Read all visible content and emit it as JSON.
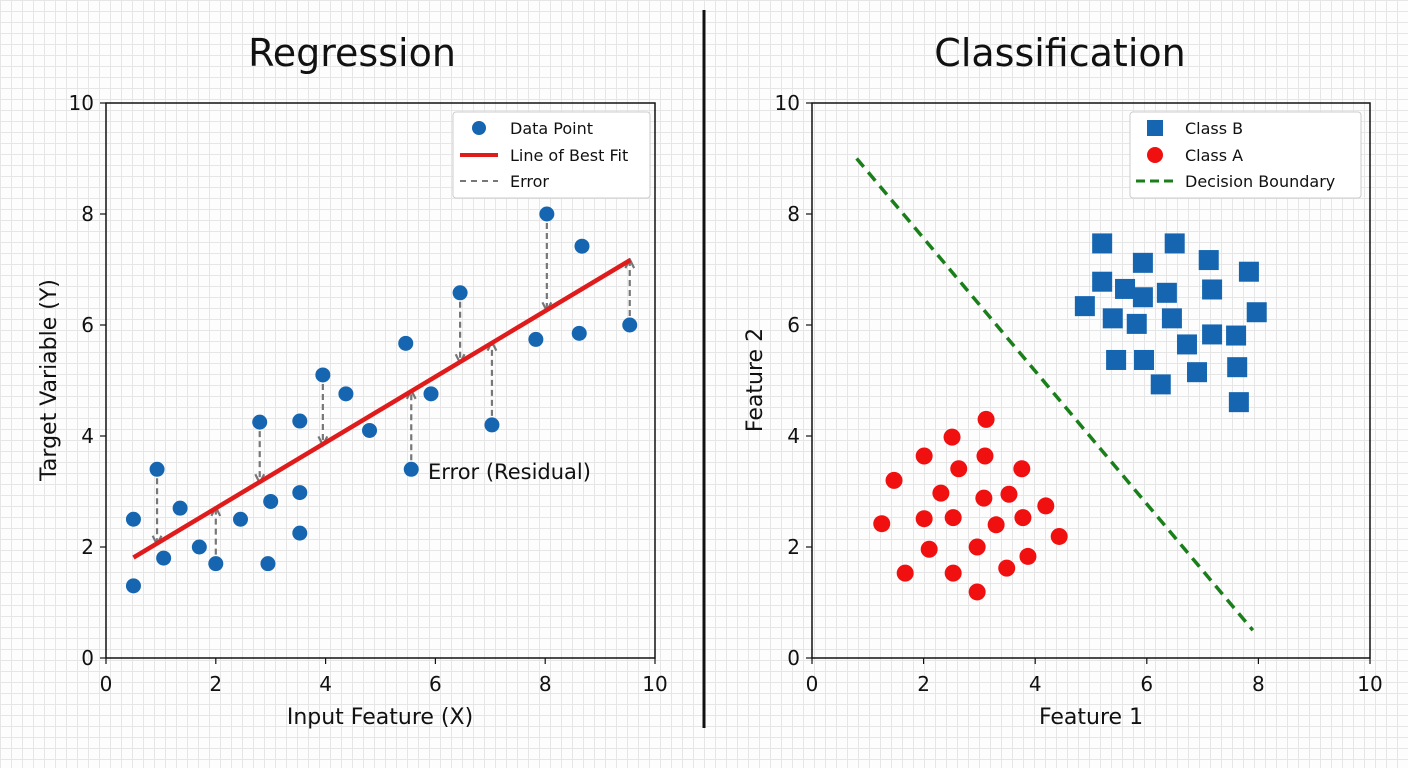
{
  "chart_data": [
    {
      "type": "scatter",
      "title": "Regression",
      "xlabel": "Input Feature (X)",
      "ylabel": "Target Variable (Y)",
      "xlim": [
        0,
        10
      ],
      "ylim": [
        0,
        10
      ],
      "xticks": [
        0,
        2,
        4,
        6,
        8,
        10
      ],
      "yticks": [
        0,
        2,
        4,
        6,
        8,
        10
      ],
      "grid": false,
      "legend_position": "top-right",
      "legend": [
        "Data Point",
        "Line of Best Fit",
        "Error"
      ],
      "annotation": "Error (Residual)",
      "colors": {
        "points": "#1565b0",
        "fit": "#e01b1b",
        "error": "#777777"
      },
      "points": [
        [
          0.5,
          2.5
        ],
        [
          0.5,
          1.3
        ],
        [
          0.93,
          3.4
        ],
        [
          1.05,
          1.8
        ],
        [
          1.35,
          2.7
        ],
        [
          1.7,
          2.0
        ],
        [
          2.0,
          1.7
        ],
        [
          2.45,
          2.5
        ],
        [
          2.8,
          4.25
        ],
        [
          2.95,
          1.7
        ],
        [
          3.0,
          2.82
        ],
        [
          3.53,
          4.27
        ],
        [
          3.53,
          2.98
        ],
        [
          3.53,
          2.25
        ],
        [
          3.95,
          5.1
        ],
        [
          4.37,
          4.76
        ],
        [
          4.8,
          4.1
        ],
        [
          5.46,
          5.67
        ],
        [
          5.56,
          3.4
        ],
        [
          5.92,
          4.76
        ],
        [
          6.45,
          6.58
        ],
        [
          7.03,
          4.2
        ],
        [
          7.83,
          5.74
        ],
        [
          8.03,
          8.0
        ],
        [
          8.62,
          5.85
        ],
        [
          8.67,
          7.42
        ],
        [
          9.54,
          6.0
        ]
      ],
      "fit_line": {
        "x": [
          0.5,
          9.55
        ],
        "y": [
          1.81,
          7.17
        ]
      },
      "error_points_x": [
        0.93,
        2.0,
        2.8,
        3.95,
        5.56,
        6.45,
        7.03,
        8.03,
        9.54
      ]
    },
    {
      "type": "scatter",
      "title": "Classification",
      "xlabel": "Feature 1",
      "ylabel": "Feature 2",
      "xlim": [
        0,
        10
      ],
      "ylim": [
        0,
        10
      ],
      "xticks": [
        0,
        2,
        4,
        6,
        8,
        10
      ],
      "yticks": [
        0,
        2,
        4,
        6,
        8,
        10
      ],
      "grid": false,
      "legend_position": "top-right",
      "legend": [
        "Class B",
        "Class A",
        "Decision Boundary"
      ],
      "colors": {
        "class_b": "#1565b0",
        "class_a": "#f01010",
        "boundary": "#1a7f1a"
      },
      "series": [
        {
          "name": "Class B",
          "marker": "square",
          "points": [
            [
              5.2,
              7.47
            ],
            [
              6.5,
              7.47
            ],
            [
              5.93,
              7.12
            ],
            [
              7.11,
              7.17
            ],
            [
              7.83,
              6.96
            ],
            [
              5.2,
              6.78
            ],
            [
              5.61,
              6.65
            ],
            [
              5.93,
              6.5
            ],
            [
              6.36,
              6.58
            ],
            [
              7.17,
              6.64
            ],
            [
              4.89,
              6.34
            ],
            [
              7.97,
              6.23
            ],
            [
              5.39,
              6.12
            ],
            [
              5.82,
              6.02
            ],
            [
              6.45,
              6.12
            ],
            [
              7.17,
              5.83
            ],
            [
              7.6,
              5.81
            ],
            [
              6.72,
              5.65
            ],
            [
              5.45,
              5.37
            ],
            [
              5.95,
              5.37
            ],
            [
              6.9,
              5.15
            ],
            [
              7.62,
              5.24
            ],
            [
              6.25,
              4.93
            ],
            [
              7.65,
              4.61
            ]
          ]
        },
        {
          "name": "Class A",
          "marker": "circle",
          "points": [
            [
              3.12,
              4.3
            ],
            [
              2.51,
              3.98
            ],
            [
              2.01,
              3.64
            ],
            [
              3.1,
              3.64
            ],
            [
              2.63,
              3.41
            ],
            [
              3.76,
              3.41
            ],
            [
              1.47,
              3.2
            ],
            [
              2.31,
              2.97
            ],
            [
              3.08,
              2.88
            ],
            [
              3.53,
              2.95
            ],
            [
              4.19,
              2.74
            ],
            [
              1.25,
              2.42
            ],
            [
              2.01,
              2.51
            ],
            [
              2.53,
              2.53
            ],
            [
              3.3,
              2.4
            ],
            [
              3.78,
              2.53
            ],
            [
              4.43,
              2.19
            ],
            [
              2.1,
              1.96
            ],
            [
              2.96,
              2.0
            ],
            [
              3.87,
              1.83
            ],
            [
              1.67,
              1.53
            ],
            [
              2.53,
              1.53
            ],
            [
              3.49,
              1.62
            ],
            [
              2.96,
              1.19
            ]
          ]
        }
      ],
      "decision_boundary": {
        "x": [
          0.8,
          7.9
        ],
        "y": [
          9.0,
          0.5
        ]
      }
    }
  ]
}
